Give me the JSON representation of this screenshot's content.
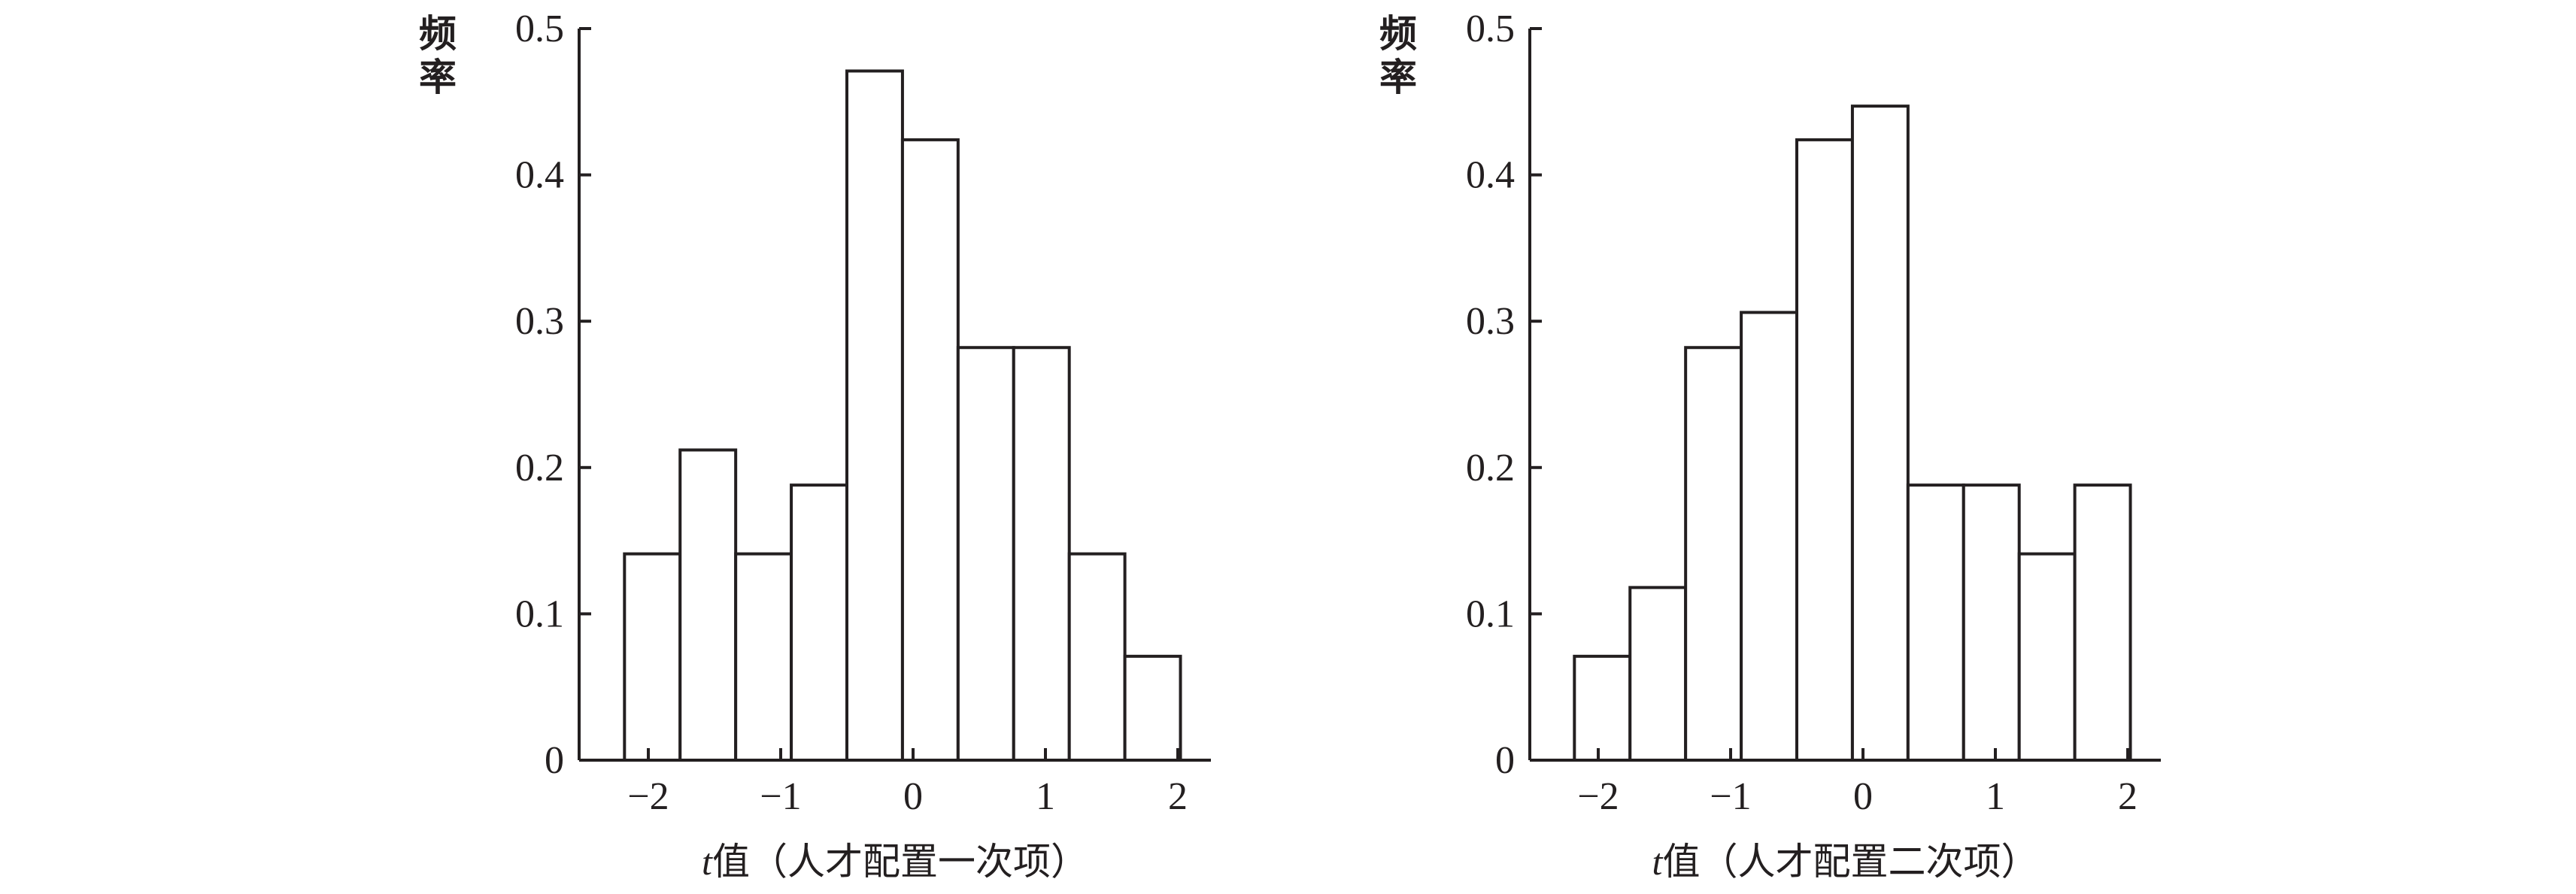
{
  "chart_data": [
    {
      "type": "bar",
      "subtype": "histogram",
      "ylabel": "频率",
      "xlabel_italic": "t",
      "xlabel": "值（人才配置一次项）",
      "xlim": [
        -2.55,
        2.25
      ],
      "ylim": [
        0,
        0.5
      ],
      "xticks": [
        -2,
        -1,
        0,
        1,
        2
      ],
      "xtick_labels": [
        "−2",
        "−1",
        "0",
        "1",
        "2"
      ],
      "yticks": [
        0,
        0.1,
        0.2,
        0.3,
        0.4,
        0.5
      ],
      "ytick_labels": [
        "0",
        "0.1",
        "0.2",
        "0.3",
        "0.4",
        "0.5"
      ],
      "bin_edges": [
        -2.18,
        -1.76,
        -1.34,
        -0.92,
        -0.5,
        -0.08,
        0.34,
        0.76,
        1.18,
        1.6,
        2.02
      ],
      "values": [
        0.141,
        0.212,
        0.141,
        0.188,
        0.471,
        0.424,
        0.282,
        0.282,
        0.141,
        0.071
      ],
      "bar_fill": "#ffffff",
      "bar_stroke": "#231f20",
      "grid": false
    },
    {
      "type": "bar",
      "subtype": "histogram",
      "ylabel": "频率",
      "xlabel_italic": "t",
      "xlabel": "值（人才配置二次项）",
      "xlim": [
        -2.55,
        2.25
      ],
      "ylim": [
        0,
        0.5
      ],
      "xticks": [
        -2,
        -1,
        0,
        1,
        2
      ],
      "xtick_labels": [
        "−2",
        "−1",
        "0",
        "1",
        "2"
      ],
      "yticks": [
        0,
        0.1,
        0.2,
        0.3,
        0.4,
        0.5
      ],
      "ytick_labels": [
        "0",
        "0.1",
        "0.2",
        "0.3",
        "0.4",
        "0.5"
      ],
      "bin_edges": [
        -2.18,
        -1.76,
        -1.34,
        -0.92,
        -0.5,
        -0.08,
        0.34,
        0.76,
        1.18,
        1.6,
        2.02
      ],
      "values": [
        0.071,
        0.118,
        0.282,
        0.306,
        0.424,
        0.447,
        0.188,
        0.188,
        0.141,
        0.188
      ],
      "bar_fill": "#ffffff",
      "bar_stroke": "#231f20",
      "grid": false
    }
  ]
}
